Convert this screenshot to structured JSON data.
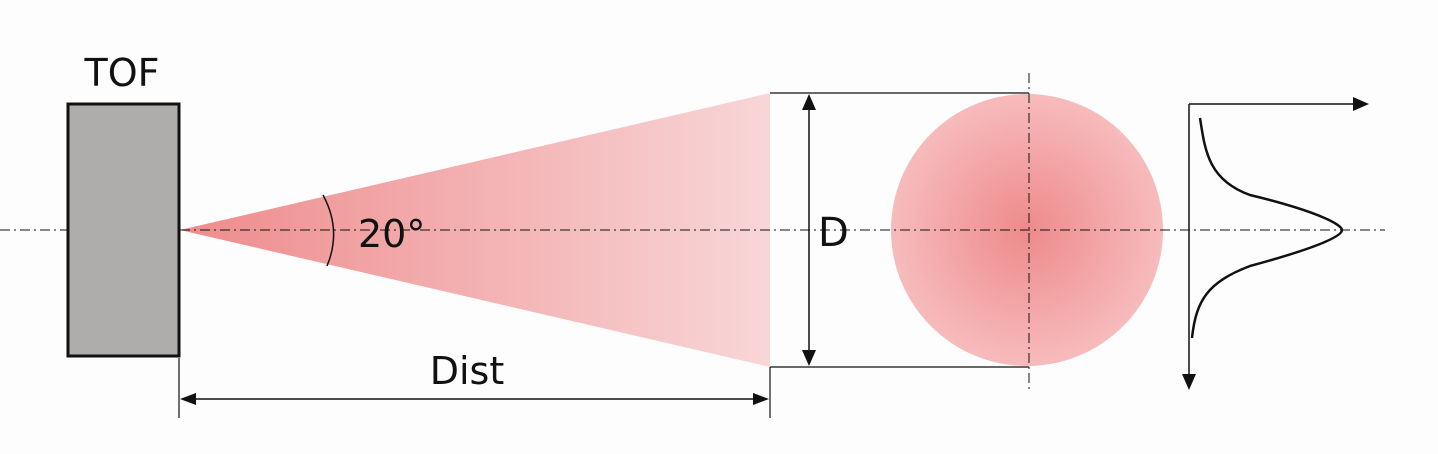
{
  "diagram": {
    "sensor_label": "TOF",
    "angle_label": "20°",
    "distance_label": "Dist",
    "diameter_label": "D"
  },
  "colors": {
    "sensor_fill": "#aeadab",
    "outline": "#111111",
    "beam_near": "#ee8b8c",
    "beam_far": "#f8d6d7",
    "spot_center": "#ee8a8b",
    "spot_edge": "#f7bbbc"
  },
  "icons": {
    "sensor": "tof-sensor-icon",
    "profile": "intensity-profile-icon"
  }
}
